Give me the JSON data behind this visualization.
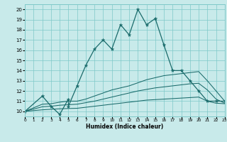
{
  "title": "",
  "xlabel": "Humidex (Indice chaleur)",
  "xlim": [
    0,
    23
  ],
  "ylim": [
    9.5,
    20.5
  ],
  "xticks": [
    0,
    1,
    2,
    3,
    4,
    5,
    6,
    7,
    8,
    9,
    10,
    11,
    12,
    13,
    14,
    15,
    16,
    17,
    18,
    19,
    20,
    21,
    22,
    23
  ],
  "yticks": [
    10,
    11,
    12,
    13,
    14,
    15,
    16,
    17,
    18,
    19,
    20
  ],
  "background_color": "#c8eaea",
  "grid_color": "#7ec8c8",
  "line_color": "#1a6b6b",
  "line1_x": [
    0,
    2,
    3,
    4,
    5,
    5,
    6,
    7,
    8,
    9,
    10,
    11,
    12,
    13,
    14,
    15,
    16,
    17,
    18,
    19,
    20,
    21,
    22,
    23
  ],
  "line1_y": [
    10,
    11.5,
    10.5,
    9.7,
    11.2,
    10.5,
    12.5,
    14.5,
    16.1,
    17.0,
    16.1,
    18.5,
    17.5,
    20.0,
    18.5,
    19.1,
    16.5,
    14.0,
    14.0,
    13.0,
    12.0,
    11.0,
    11.0,
    11.0
  ],
  "line2_x": [
    0,
    2,
    3,
    4,
    5,
    6,
    7,
    8,
    9,
    10,
    11,
    12,
    13,
    14,
    15,
    16,
    17,
    18,
    19,
    20,
    21,
    22,
    23
  ],
  "line2_y": [
    10,
    10.7,
    10.75,
    10.9,
    11.0,
    11.0,
    11.2,
    11.5,
    11.8,
    12.1,
    12.3,
    12.5,
    12.8,
    13.1,
    13.3,
    13.5,
    13.6,
    13.7,
    13.8,
    13.9,
    13.0,
    12.0,
    11.0
  ],
  "line3_x": [
    0,
    2,
    3,
    4,
    5,
    6,
    7,
    8,
    9,
    10,
    11,
    12,
    13,
    14,
    15,
    16,
    17,
    18,
    19,
    20,
    21,
    22,
    23
  ],
  "line3_y": [
    10,
    10.45,
    10.5,
    10.6,
    10.65,
    10.7,
    10.85,
    11.0,
    11.2,
    11.4,
    11.6,
    11.8,
    12.0,
    12.15,
    12.3,
    12.4,
    12.5,
    12.6,
    12.7,
    12.75,
    12.1,
    11.2,
    10.8
  ],
  "line4_x": [
    0,
    2,
    3,
    4,
    5,
    6,
    7,
    8,
    9,
    10,
    11,
    12,
    13,
    14,
    15,
    16,
    17,
    18,
    19,
    20,
    21,
    22,
    23
  ],
  "line4_y": [
    10,
    10.15,
    10.2,
    10.25,
    10.28,
    10.3,
    10.4,
    10.5,
    10.6,
    10.7,
    10.8,
    10.9,
    11.0,
    11.1,
    11.15,
    11.2,
    11.25,
    11.3,
    11.35,
    11.4,
    11.0,
    10.8,
    10.75
  ]
}
